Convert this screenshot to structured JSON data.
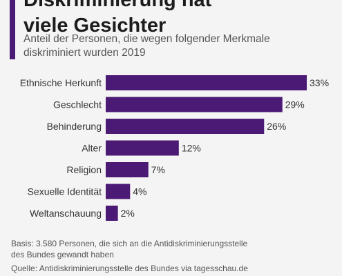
{
  "header": {
    "title_line1": "Diskriminierung hat",
    "title_line2": "viele Gesichter",
    "subtitle_line1": "Anteil der Personen, die wegen folgender Merkmale",
    "subtitle_line2": "diskriminiert wurden 2019"
  },
  "colors": {
    "accent": "#4b1a75",
    "bar": "#4b1a75",
    "background": "#f4f4f4"
  },
  "chart_data": {
    "type": "bar",
    "orientation": "horizontal",
    "categories": [
      "Ethnische Herkunft",
      "Geschlecht",
      "Behinderung",
      "Alter",
      "Religion",
      "Sexuelle Identität",
      "Weltanschauung"
    ],
    "values": [
      33,
      29,
      26,
      12,
      7,
      4,
      2
    ],
    "value_labels": [
      "33%",
      "29%",
      "26%",
      "12%",
      "7%",
      "4%",
      "2%"
    ],
    "unit": "%",
    "xlim": [
      0,
      33
    ],
    "grid": false,
    "legend": "none"
  },
  "footer": {
    "basis_line1": "Basis: 3.580 Personen, die sich an die Antidiskriminierungsstelle",
    "basis_line2": "des Bundes gewandt haben",
    "source": "Quelle: Antidiskriminierungsstelle des Bundes via tagesschau.de"
  }
}
